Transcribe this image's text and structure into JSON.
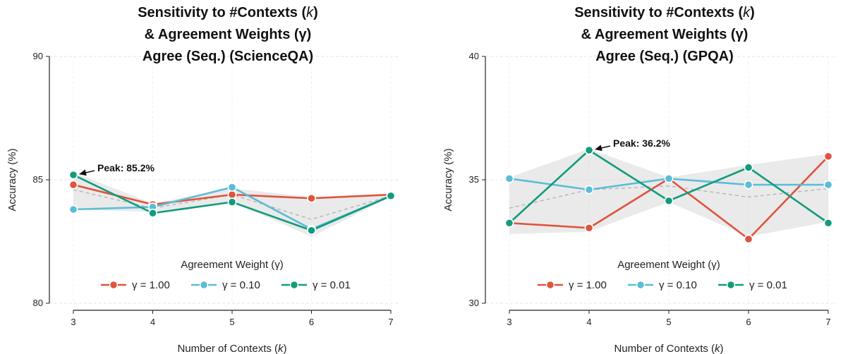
{
  "chart_data": [
    {
      "type": "line",
      "title_lines": [
        "Sensitivity to #Contexts (k)",
        "& Agreement Weights (γ)",
        "Agree (Seq.) (ScienceQA)"
      ],
      "xlabel": "Number of Contexts (k)",
      "ylabel": "Accuracy (%)",
      "x": [
        3,
        4,
        5,
        6,
        7
      ],
      "ylim": [
        80,
        90
      ],
      "yticks": [
        80,
        85,
        90
      ],
      "grid": true,
      "legend_title": "Agreement Weight (γ)",
      "legend_placement": "lower-center",
      "series": [
        {
          "name": "γ = 1.00",
          "color": "#e0533d",
          "values": [
            84.8,
            84.0,
            84.4,
            84.25,
            84.4
          ]
        },
        {
          "name": "γ = 0.10",
          "color": "#5bbcd8",
          "values": [
            83.8,
            83.9,
            84.7,
            83.0,
            84.35
          ]
        },
        {
          "name": "γ = 0.01",
          "color": "#119c7c",
          "values": [
            85.2,
            83.65,
            84.1,
            82.95,
            84.35
          ]
        }
      ],
      "mean": [
        84.6,
        83.85,
        84.4,
        83.4,
        84.35
      ],
      "band_lower": [
        83.8,
        83.7,
        84.1,
        82.7,
        84.3
      ],
      "band_upper": [
        85.3,
        84.05,
        84.65,
        84.3,
        84.45
      ],
      "peak": {
        "x": 3,
        "y": 85.2,
        "label": "Peak: 85.2%"
      }
    },
    {
      "type": "line",
      "title_lines": [
        "Sensitivity to #Contexts (k)",
        "& Agreement Weights (γ)",
        "Agree (Seq.) (GPQA)"
      ],
      "xlabel": "Number of Contexts (k)",
      "ylabel": "Accuracy (%)",
      "x": [
        3,
        4,
        5,
        6,
        7
      ],
      "ylim": [
        30,
        40
      ],
      "yticks": [
        30,
        35,
        40
      ],
      "grid": true,
      "legend_title": "Agreement Weight (γ)",
      "legend_placement": "lower-center",
      "series": [
        {
          "name": "γ = 1.00",
          "color": "#e0533d",
          "values": [
            33.25,
            33.05,
            35.05,
            32.6,
            35.95
          ]
        },
        {
          "name": "γ = 0.10",
          "color": "#5bbcd8",
          "values": [
            35.05,
            34.6,
            35.05,
            34.8,
            34.8
          ]
        },
        {
          "name": "γ = 0.01",
          "color": "#119c7c",
          "values": [
            33.25,
            36.2,
            34.15,
            35.5,
            33.25
          ]
        }
      ],
      "mean": [
        33.85,
        34.6,
        34.75,
        34.3,
        34.65
      ],
      "band_lower": [
        32.8,
        32.9,
        34.1,
        32.7,
        33.3
      ],
      "band_upper": [
        35.1,
        36.25,
        35.1,
        35.6,
        36.05
      ],
      "peak": {
        "x": 4,
        "y": 36.2,
        "label": "Peak: 36.2%"
      }
    }
  ]
}
